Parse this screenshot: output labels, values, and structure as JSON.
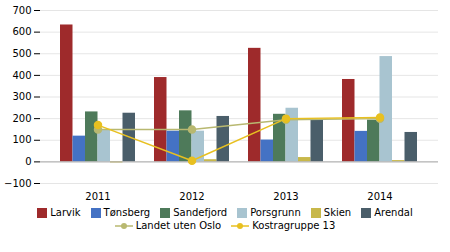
{
  "chart_data": {
    "type": "bar",
    "categories": [
      "2011",
      "2012",
      "2013",
      "2014"
    ],
    "series": [
      {
        "name": "Larvik",
        "color": "#9e2a2b",
        "values": [
          633,
          390,
          525,
          381
        ]
      },
      {
        "name": "Tønsberg",
        "color": "#4472c4",
        "values": [
          119,
          142,
          101,
          141
        ]
      },
      {
        "name": "Sandefjord",
        "color": "#4e7a5a",
        "values": [
          231,
          236,
          220,
          193
        ]
      },
      {
        "name": "Porsgrunn",
        "color": "#a8c4d0",
        "values": [
          146,
          142,
          248,
          487
        ]
      },
      {
        "name": "Skien",
        "color": "#c8b84a",
        "values": [
          -5,
          10,
          20,
          6
        ]
      },
      {
        "name": "Arendal",
        "color": "#4a5e6a",
        "values": [
          225,
          210,
          195,
          136
        ]
      },
      {
        "name": "Landet uten Oslo",
        "type": "line",
        "color": "#b8b870",
        "marker": "o",
        "line_style": "solid",
        "values": [
          150,
          150,
          195,
          200
        ]
      },
      {
        "name": "Kostragruppe 13",
        "type": "line",
        "color": "#e8c020",
        "marker": "o",
        "line_style": "solid",
        "values": [
          170,
          5,
          200,
          205
        ]
      }
    ],
    "ylim": [
      -100,
      700
    ],
    "yticks": [
      -100,
      0,
      100,
      200,
      300,
      400,
      500,
      600,
      700
    ],
    "grid": true,
    "legend": "bottom"
  }
}
